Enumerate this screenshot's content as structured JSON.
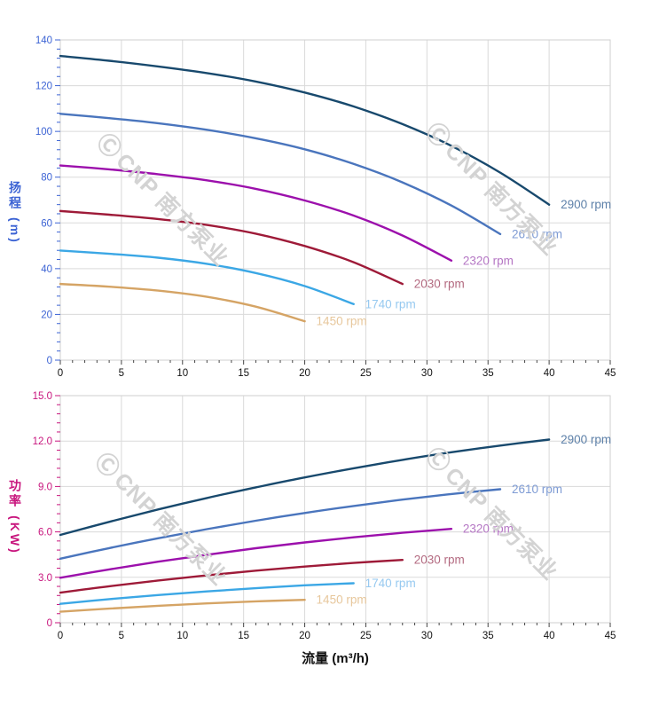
{
  "watermark": {
    "logo_glyph": "Ⓒ",
    "text": "CNP 南方泵业",
    "color": "#d3d3d3"
  },
  "chart_data": [
    {
      "type": "line",
      "title": "",
      "ylabel": "扬程 (m)",
      "xlabel": "",
      "xlim": [
        0,
        45
      ],
      "ylim": [
        0,
        140
      ],
      "x_major": 5,
      "x_minor": 1,
      "y_major": 20,
      "y_minor": 4,
      "y_decimals": 0,
      "grid": true,
      "axis_color": "#3c63d4",
      "x_tick_color": "#444444",
      "x_label_color": "#111111",
      "grid_color": "#dadada",
      "legend_position": "at-line-end",
      "series": [
        {
          "name": "2900 rpm",
          "color": "#18496d",
          "label_color": "#5e81a9",
          "points": [
            [
              0,
              133
            ],
            [
              4,
              130.9
            ],
            [
              8,
              128.4
            ],
            [
              12,
              125.5
            ],
            [
              16,
              121.8
            ],
            [
              20,
              117
            ],
            [
              24,
              110.9
            ],
            [
              28,
              103.2
            ],
            [
              32,
              93.7
            ],
            [
              36,
              82
            ],
            [
              40,
              68
            ]
          ]
        },
        {
          "name": "2610 rpm",
          "color": "#4a75bd",
          "label_color": "#7e9bd4",
          "points": [
            [
              0,
              107.7
            ],
            [
              4,
              105.8
            ],
            [
              8,
              103.6
            ],
            [
              12,
              100.7
            ],
            [
              16,
              97
            ],
            [
              20,
              92.2
            ],
            [
              24,
              85.8
            ],
            [
              28,
              77.7
            ],
            [
              32,
              67.6
            ],
            [
              36,
              55.1
            ]
          ]
        },
        {
          "name": "2320 rpm",
          "color": "#9c10ac",
          "label_color": "#b577c4",
          "points": [
            [
              0,
              85.1
            ],
            [
              4,
              83.4
            ],
            [
              8,
              81.3
            ],
            [
              12,
              78.6
            ],
            [
              16,
              74.9
            ],
            [
              20,
              69.8
            ],
            [
              24,
              63.2
            ],
            [
              28,
              54.5
            ],
            [
              32,
              43.5
            ]
          ]
        },
        {
          "name": "2030 rpm",
          "color": "#9e1a38",
          "label_color": "#b36a80",
          "points": [
            [
              0,
              65.2
            ],
            [
              4,
              63.6
            ],
            [
              8,
              61.7
            ],
            [
              12,
              59.1
            ],
            [
              16,
              55.3
            ],
            [
              20,
              49.9
            ],
            [
              24,
              42.8
            ],
            [
              28,
              33.3
            ]
          ]
        },
        {
          "name": "1740 rpm",
          "color": "#3ba7e5",
          "label_color": "#96c9f0",
          "points": [
            [
              0,
              47.9
            ],
            [
              4,
              46.5
            ],
            [
              8,
              44.8
            ],
            [
              12,
              42.1
            ],
            [
              16,
              38.1
            ],
            [
              20,
              32.4
            ],
            [
              24,
              24.5
            ]
          ]
        },
        {
          "name": "1450 rpm",
          "color": "#d5a465",
          "label_color": "#e7c79c",
          "points": [
            [
              0,
              33.3
            ],
            [
              4,
              32.1
            ],
            [
              8,
              30.4
            ],
            [
              12,
              27.7
            ],
            [
              16,
              23.4
            ],
            [
              20,
              17
            ]
          ]
        }
      ]
    },
    {
      "type": "line",
      "title": "",
      "ylabel": "功率 (KW)",
      "xlabel": "流量 (m³/h)",
      "xlim": [
        0,
        45
      ],
      "ylim": [
        0,
        15
      ],
      "x_major": 5,
      "x_minor": 1,
      "y_major": 3,
      "y_minor": 0.6,
      "y_decimals": 1,
      "grid": true,
      "axis_color": "#c8157d",
      "x_tick_color": "#444444",
      "x_label_color": "#111111",
      "grid_color": "#dadada",
      "legend_position": "at-line-end",
      "series": [
        {
          "name": "2900 rpm",
          "color": "#18496d",
          "label_color": "#5e81a9",
          "points": [
            [
              0,
              5.8
            ],
            [
              4,
              6.66
            ],
            [
              8,
              7.48
            ],
            [
              12,
              8.24
            ],
            [
              16,
              8.94
            ],
            [
              20,
              9.6
            ],
            [
              24,
              10.2
            ],
            [
              28,
              10.76
            ],
            [
              32,
              11.26
            ],
            [
              36,
              11.7
            ],
            [
              40,
              12.1
            ]
          ]
        },
        {
          "name": "2610 rpm",
          "color": "#4a75bd",
          "label_color": "#7e9bd4",
          "points": [
            [
              0,
              4.23
            ],
            [
              4,
              4.93
            ],
            [
              8,
              5.58
            ],
            [
              12,
              6.18
            ],
            [
              16,
              6.74
            ],
            [
              20,
              7.25
            ],
            [
              24,
              7.71
            ],
            [
              28,
              8.13
            ],
            [
              32,
              8.5
            ],
            [
              36,
              8.82
            ]
          ]
        },
        {
          "name": "2320 rpm",
          "color": "#9c10ac",
          "label_color": "#b577c4",
          "points": [
            [
              0,
              2.97
            ],
            [
              4,
              3.52
            ],
            [
              8,
              4.03
            ],
            [
              12,
              4.49
            ],
            [
              16,
              4.92
            ],
            [
              20,
              5.3
            ],
            [
              24,
              5.64
            ],
            [
              28,
              5.94
            ],
            [
              32,
              6.2
            ]
          ]
        },
        {
          "name": "2030 rpm",
          "color": "#9e1a38",
          "label_color": "#b36a80",
          "points": [
            [
              0,
              1.99
            ],
            [
              4,
              2.41
            ],
            [
              8,
              2.79
            ],
            [
              12,
              3.13
            ],
            [
              16,
              3.44
            ],
            [
              20,
              3.71
            ],
            [
              24,
              3.95
            ],
            [
              28,
              4.15
            ]
          ]
        },
        {
          "name": "1740 rpm",
          "color": "#3ba7e5",
          "label_color": "#96c9f0",
          "points": [
            [
              0,
              1.25
            ],
            [
              4,
              1.56
            ],
            [
              8,
              1.83
            ],
            [
              12,
              2.07
            ],
            [
              16,
              2.28
            ],
            [
              20,
              2.47
            ],
            [
              24,
              2.61
            ]
          ]
        },
        {
          "name": "1450 rpm",
          "color": "#d5a465",
          "label_color": "#e7c79c",
          "points": [
            [
              0,
              0.73
            ],
            [
              4,
              0.93
            ],
            [
              8,
              1.12
            ],
            [
              12,
              1.28
            ],
            [
              16,
              1.41
            ],
            [
              20,
              1.51
            ]
          ]
        }
      ]
    }
  ]
}
